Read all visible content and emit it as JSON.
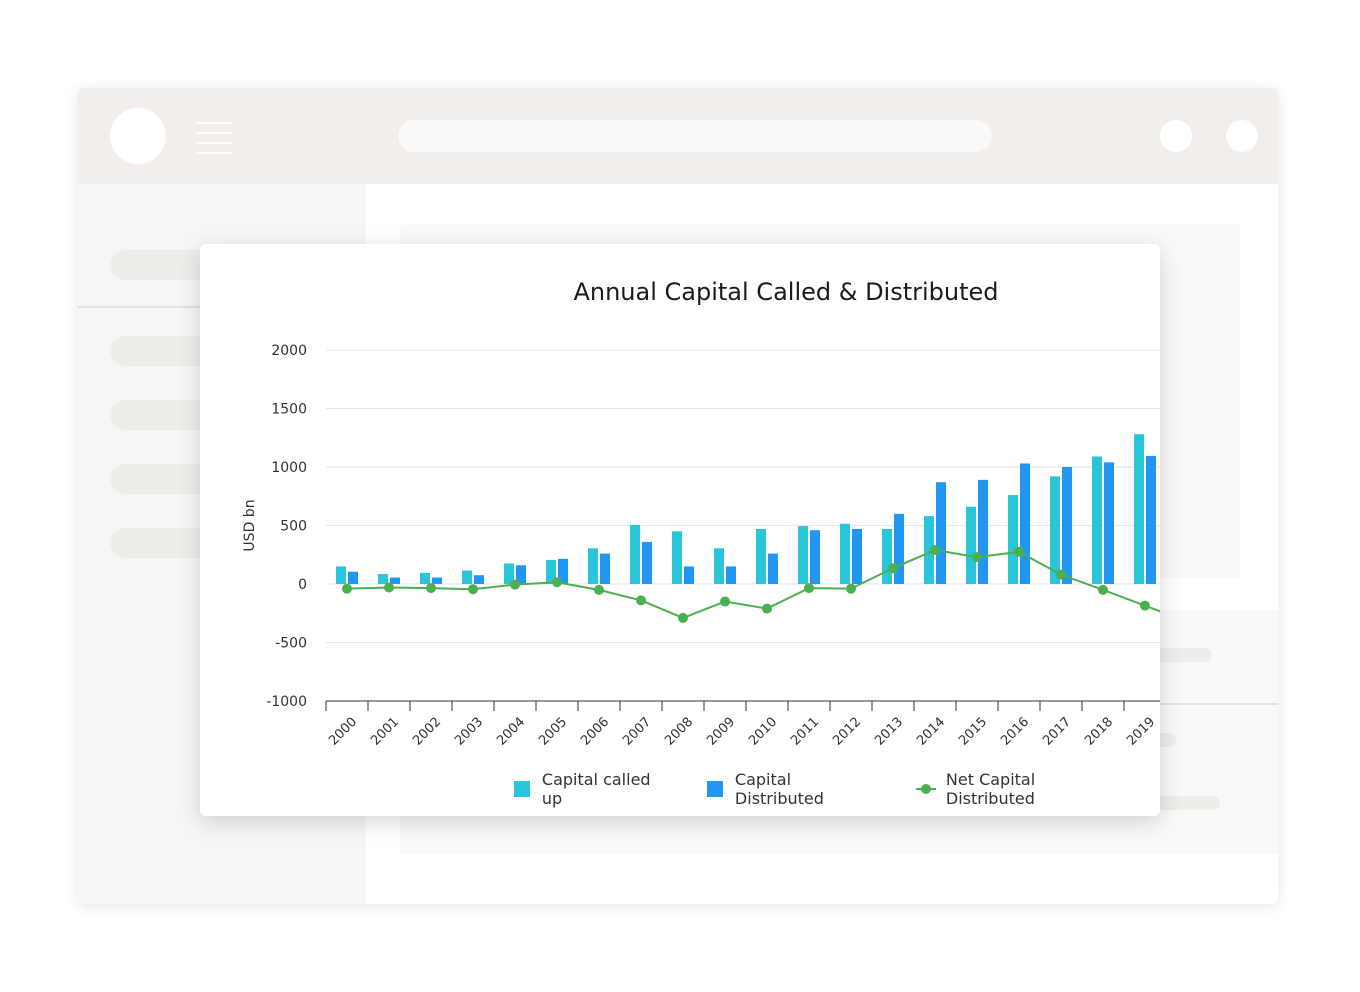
{
  "colors": {
    "called": "#29c5d9",
    "distributed": "#2196f3",
    "net": "#4caf50",
    "grid": "#e6e6e6",
    "axis": "#333333"
  },
  "chart_data": {
    "type": "bar",
    "title": "Annual Capital Called & Distributed",
    "xlabel": "",
    "ylabel": "USD bn",
    "ylim": [
      -1000,
      2000
    ],
    "yticks": [
      2000,
      1500,
      1000,
      500,
      0,
      -500,
      -1000
    ],
    "grid": true,
    "legend_position": "bottom",
    "categories": [
      "2000",
      "2001",
      "2002",
      "2003",
      "2004",
      "2005",
      "2006",
      "2007",
      "2008",
      "2009",
      "2010",
      "2011",
      "2012",
      "2013",
      "2014",
      "2015",
      "2016",
      "2017",
      "2018",
      "2019"
    ],
    "series": [
      {
        "name": "Capital called up",
        "type": "bar",
        "values": [
          150,
          85,
          95,
          115,
          175,
          205,
          305,
          505,
          450,
          305,
          470,
          495,
          515,
          470,
          580,
          660,
          760,
          920,
          1090,
          1280
        ]
      },
      {
        "name": "Capital Distributed",
        "type": "bar",
        "values": [
          105,
          55,
          55,
          75,
          160,
          215,
          260,
          360,
          150,
          150,
          260,
          460,
          470,
          600,
          870,
          890,
          1030,
          1000,
          1040,
          1095
        ]
      },
      {
        "name": "Net Capital Distributed",
        "type": "line",
        "values": [
          -40,
          -30,
          -35,
          -45,
          -5,
          15,
          -50,
          -140,
          -290,
          -150,
          -210,
          -35,
          -40,
          135,
          290,
          230,
          275,
          80,
          -50,
          -185
        ]
      }
    ]
  }
}
